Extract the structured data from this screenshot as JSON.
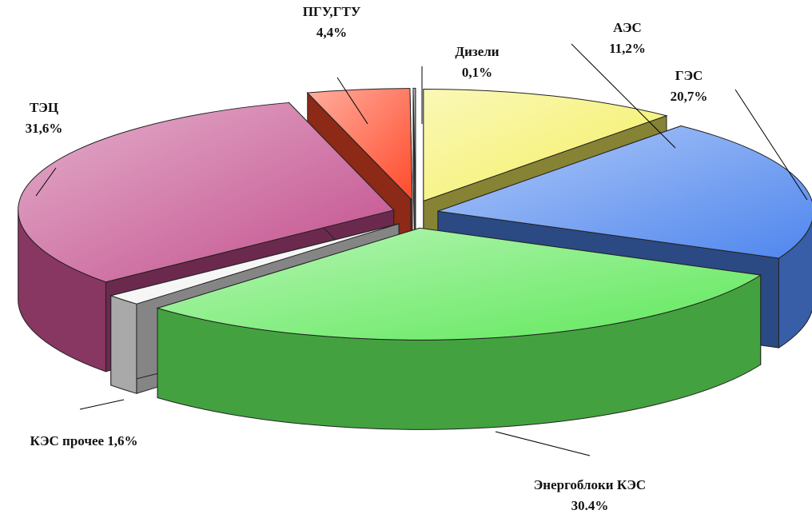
{
  "chart_data": {
    "type": "pie",
    "categories": [
      "АЭС",
      "ГЭС",
      "Энергоблоки КЭС",
      "КЭС прочее",
      "ТЭЦ",
      "ПГУ,ГТУ",
      "Дизели"
    ],
    "values": [
      11.2,
      20.7,
      30.4,
      1.6,
      31.6,
      4.4,
      0.1
    ],
    "value_labels": [
      "11,2%",
      "20,7%",
      "30.4%",
      "1,6%",
      "31,6%",
      "4,4%",
      "0,1%"
    ],
    "colors": [
      "#f4ef60",
      "#4f86ee",
      "#5fe85a",
      "#f2f2f2",
      "#c24d8c",
      "#ff4a2a",
      "#8a8a8a"
    ]
  }
}
